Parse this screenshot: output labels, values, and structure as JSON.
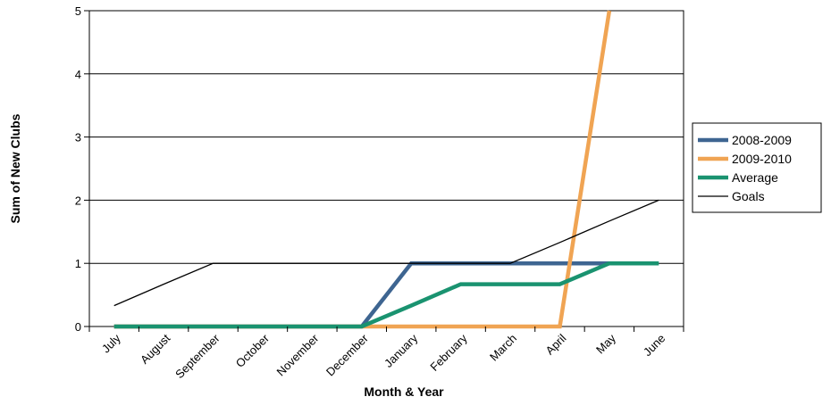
{
  "chart_data": {
    "type": "line",
    "title": "",
    "xlabel": "Month & Year",
    "ylabel": "Sum of New Clubs",
    "ylim": [
      0,
      5
    ],
    "yticks": [
      0,
      1,
      2,
      3,
      4,
      5
    ],
    "grid": true,
    "legend_position": "right",
    "categories": [
      "July",
      "August",
      "September",
      "October",
      "November",
      "December",
      "January",
      "February",
      "March",
      "April",
      "May",
      "June"
    ],
    "series": [
      {
        "name": "2008-2009",
        "color": "#3e6591",
        "values": [
          0,
          0,
          0,
          0,
          0,
          0,
          1,
          1,
          1,
          1,
          1,
          null
        ]
      },
      {
        "name": "2009-2010",
        "color": "#f0a453",
        "values": [
          0,
          0,
          0,
          0,
          0,
          0,
          0,
          0,
          0,
          0,
          5,
          null
        ]
      },
      {
        "name": "Average",
        "color": "#1a9370",
        "values": [
          0,
          0,
          0,
          0,
          0,
          0,
          0.33,
          0.67,
          0.67,
          0.67,
          1,
          1
        ]
      },
      {
        "name": "Goals",
        "color": "#000000",
        "values": [
          0.33,
          0.67,
          1,
          1,
          1,
          1,
          1,
          1,
          1,
          1.33,
          1.67,
          2
        ]
      }
    ]
  }
}
